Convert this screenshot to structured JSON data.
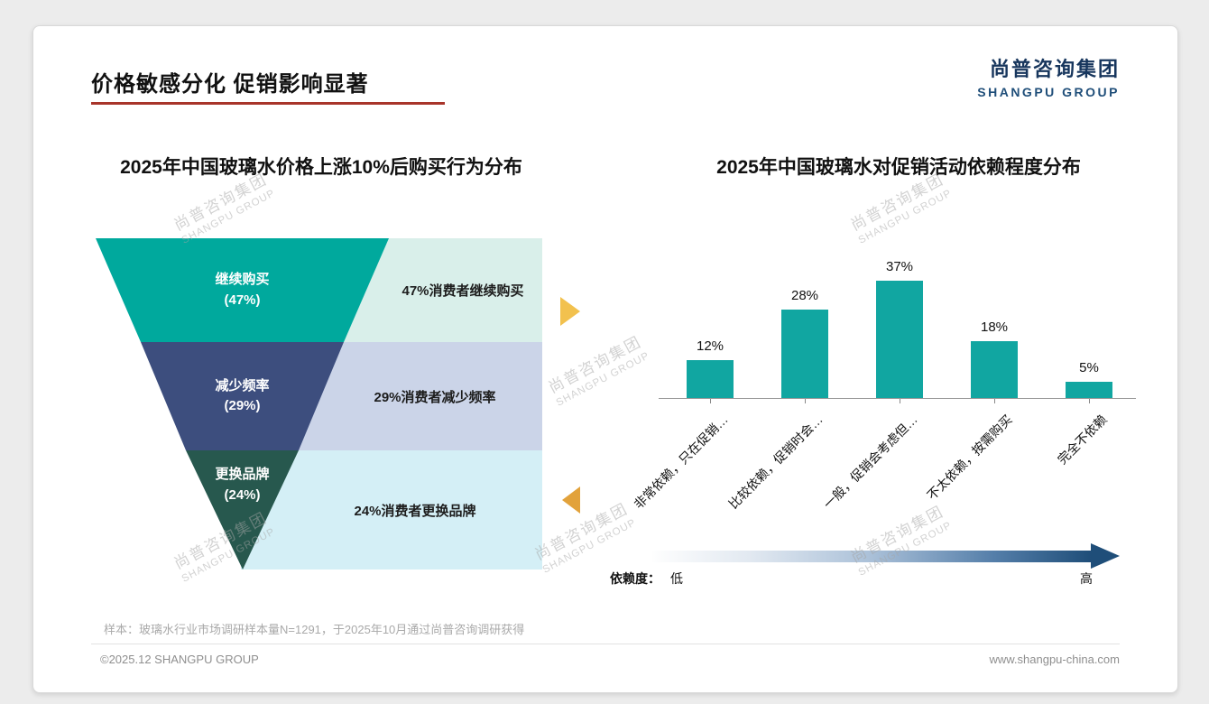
{
  "page": {
    "title": "价格敏感分化 促销影响显著",
    "logo_cn": "尚普咨询集团",
    "logo_en": "SHANGPU GROUP",
    "watermark_cn": "尚普咨询集团",
    "watermark_en": "SHANGPU GROUP",
    "footnote": "样本：玻璃水行业市场调研样本量N=1291，于2025年10月通过尚普咨询调研获得",
    "footer_left": "©2025.12 SHANGPU GROUP",
    "footer_right": "www.shangpu-china.com",
    "colors": {
      "accent_red": "#A8342A",
      "brand_navy": "#17365D",
      "logo_blue": "#1F4E79",
      "arrow_gold": "#F2C14E",
      "arrow_amber": "#E2A23B",
      "dependency_dark": "#1F4E79"
    }
  },
  "chart_data": [
    {
      "type": "funnel",
      "title": "2025年中国玻璃水价格上涨10%后购买行为分布",
      "segments": [
        {
          "label": "继续购买",
          "pct": "(47%)",
          "value": 47,
          "color": "#00A99D",
          "annotation": "47%消费者继续购买",
          "annotation_bg": "#D9EFEA"
        },
        {
          "label": "减少频率",
          "pct": "(29%)",
          "value": 29,
          "color": "#3D4E7E",
          "annotation": "29%消费者减少频率",
          "annotation_bg": "#CBD4E8"
        },
        {
          "label": "更换品牌",
          "pct": "(24%)",
          "value": 24,
          "color": "#27584E",
          "annotation": "24%消费者更换品牌",
          "annotation_bg": "#D4EFF6"
        }
      ]
    },
    {
      "type": "bar",
      "title": "2025年中国玻璃水对促销活动依赖程度分布",
      "categories": [
        "非常依赖，只在促销…",
        "比较依赖，促销时会…",
        "一般，促销会考虑但…",
        "不太依赖，按需购买",
        "完全不依赖"
      ],
      "values": [
        12,
        28,
        37,
        18,
        5
      ],
      "value_labels": [
        "12%",
        "28%",
        "37%",
        "18%",
        "5%"
      ],
      "bar_color": "#11A6A1",
      "ylim": [
        0,
        40
      ],
      "grid": false,
      "legend": null,
      "axis_label": "依赖度：",
      "axis_low": "低",
      "axis_high": "高"
    }
  ]
}
